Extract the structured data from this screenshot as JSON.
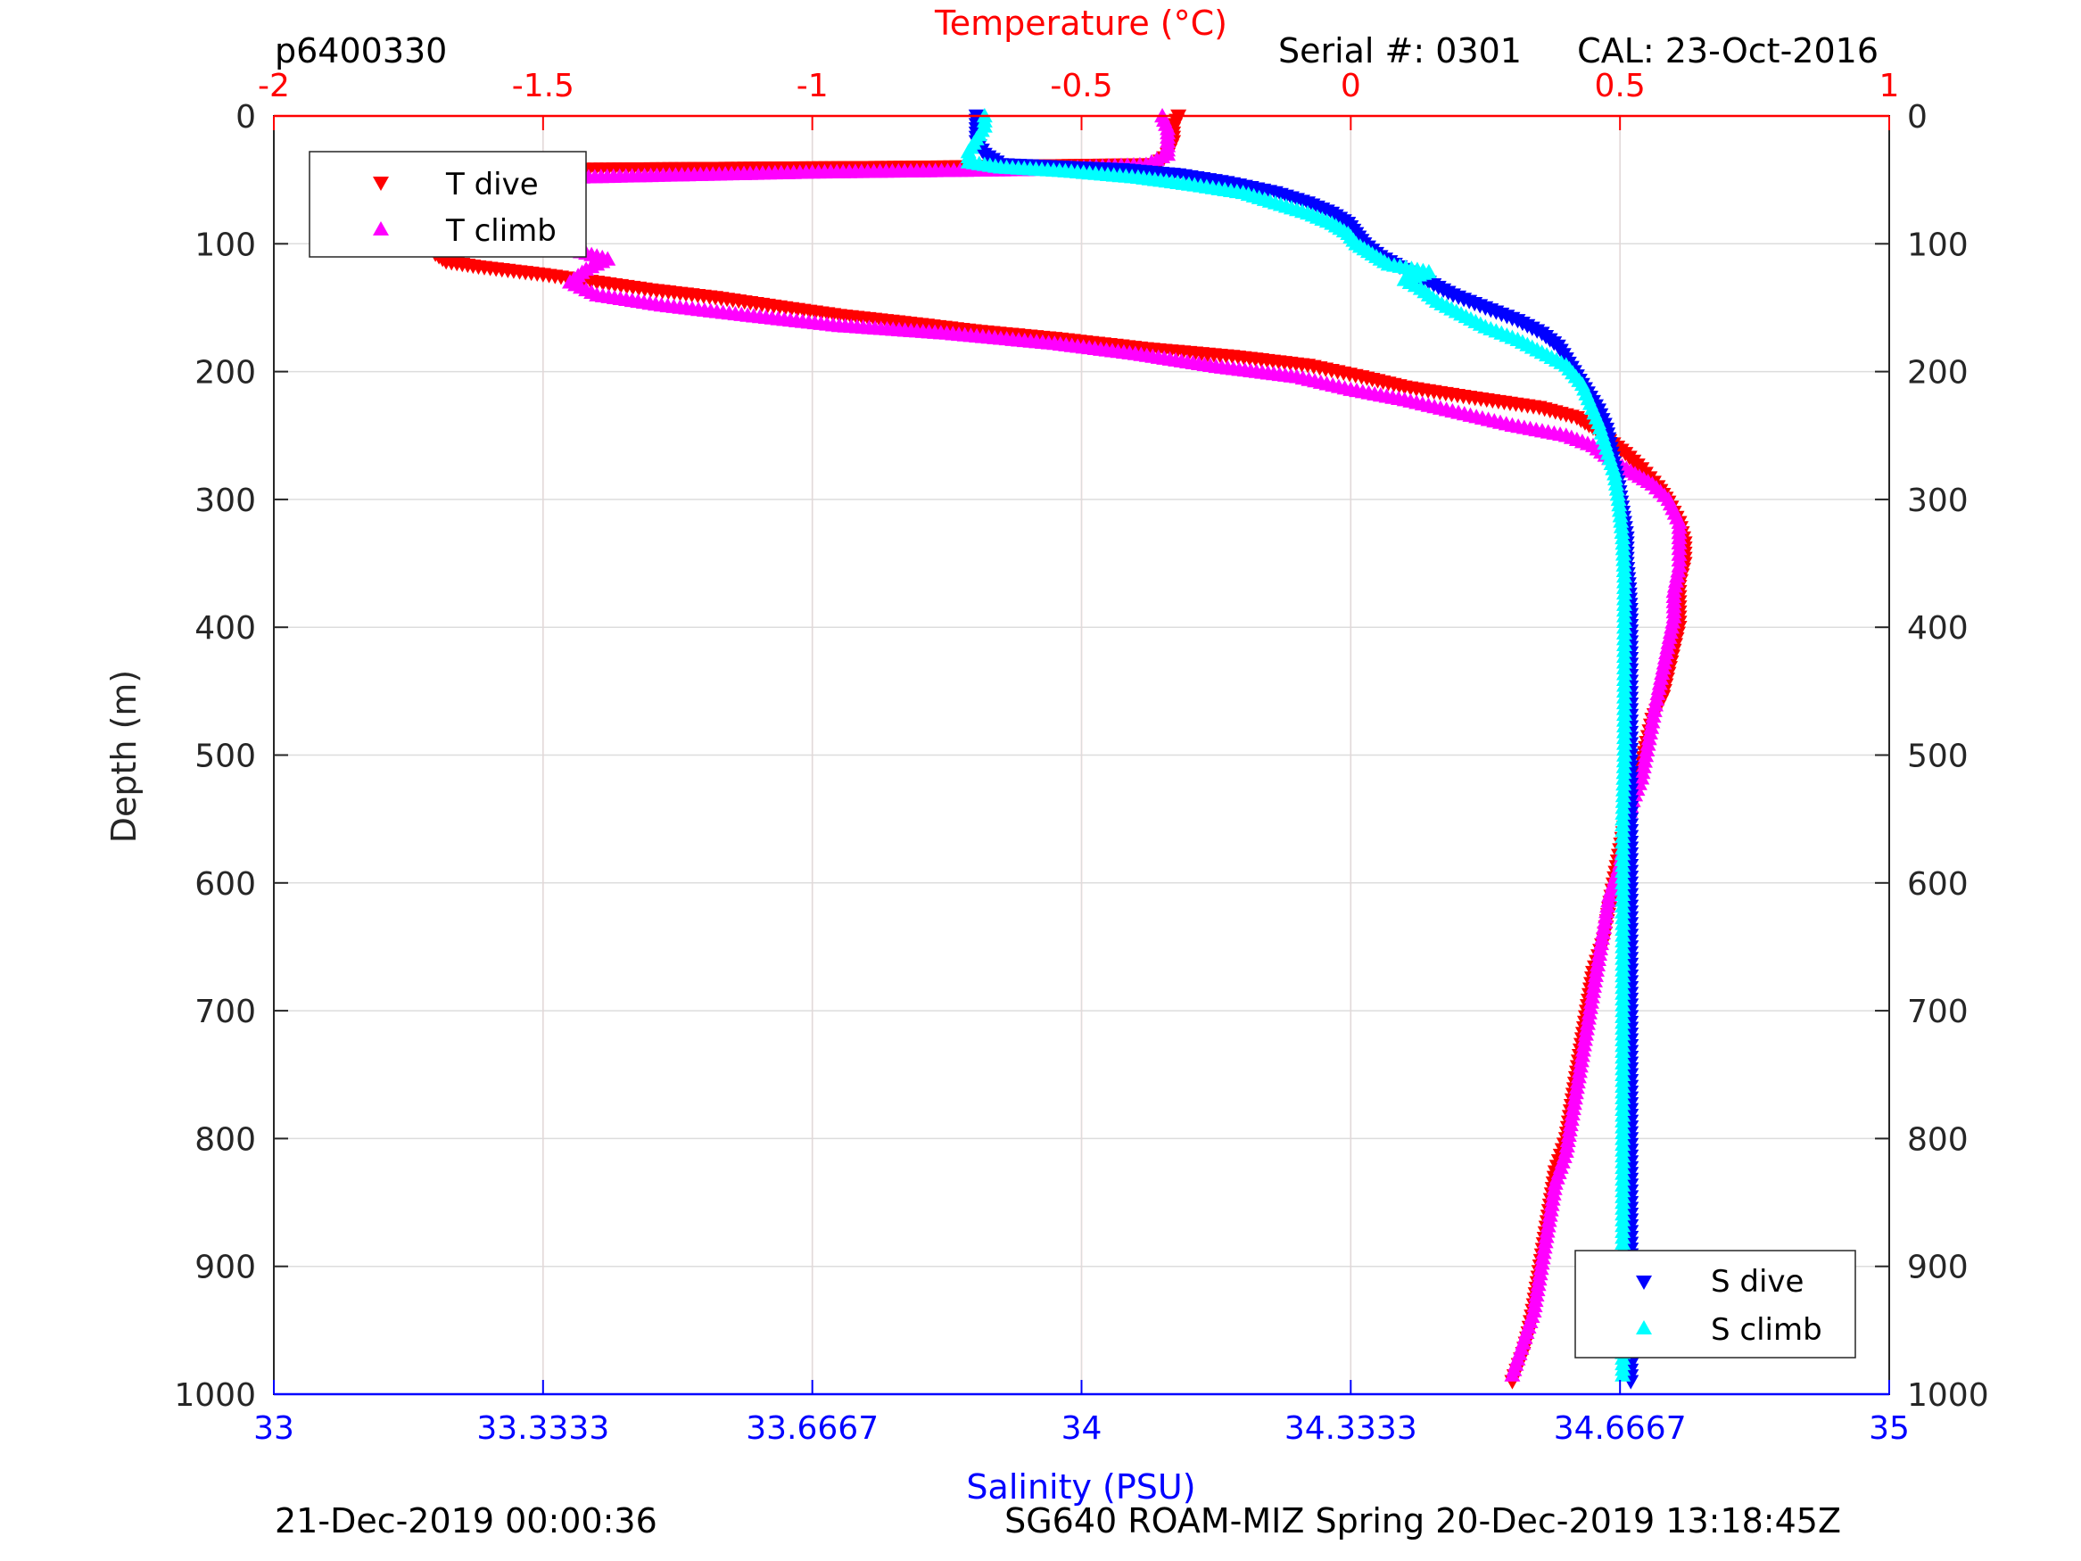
{
  "header": {
    "profile_id": "p6400330",
    "serial": "Serial #: 0301",
    "cal": "CAL: 23-Oct-2016"
  },
  "footer": {
    "left": "21-Dec-2019 00:00:36",
    "right": "SG640 ROAM-MIZ Spring 20-Dec-2019 13:18:45Z"
  },
  "colors": {
    "t_dive": "#ff0000",
    "t_climb": "#ff00ff",
    "s_dive": "#0000ff",
    "s_climb": "#00ffff",
    "temp_axis": "#ff0000",
    "sal_axis": "#0000ff",
    "grid_temp": "#f3c4c4",
    "grid_depth": "#dddddd"
  },
  "chart_data": {
    "type": "scatter",
    "y_axis": {
      "label": "Depth (m)",
      "lim": [
        0,
        1000
      ],
      "reversed": true,
      "ticks": [
        "0",
        "100",
        "200",
        "300",
        "400",
        "500",
        "600",
        "700",
        "800",
        "900",
        "1000"
      ],
      "tick_values": [
        0,
        100,
        200,
        300,
        400,
        500,
        600,
        700,
        800,
        900,
        1000
      ]
    },
    "x_top": {
      "label": "Temperature (°C)",
      "lim": [
        -2,
        1
      ],
      "ticks": [
        "-2",
        "-1.5",
        "-1",
        "-0.5",
        "0",
        "0.5",
        "1"
      ],
      "tick_values": [
        -2,
        -1.5,
        -1,
        -0.5,
        0,
        0.5,
        1
      ]
    },
    "x_bottom": {
      "label": "Salinity (PSU)",
      "lim": [
        33,
        35
      ],
      "ticks": [
        "33",
        "33.3333",
        "33.6667",
        "34",
        "34.3333",
        "34.6667",
        "35"
      ],
      "tick_values": [
        33,
        33.3333,
        33.6667,
        34,
        34.3333,
        34.6667,
        35
      ]
    },
    "grid": true,
    "legends": [
      {
        "placement": "top-left",
        "entries": [
          "T dive",
          "T climb"
        ]
      },
      {
        "placement": "bottom-right",
        "entries": [
          "S dive",
          "S climb"
        ]
      }
    ],
    "series": [
      {
        "name": "T dive",
        "axis": "temperature",
        "marker": "triangle-down",
        "points": [
          [
            -0.32,
            0
          ],
          [
            -0.33,
            10
          ],
          [
            -0.33,
            20
          ],
          [
            -0.34,
            30
          ],
          [
            -0.36,
            38
          ],
          [
            -0.8,
            40
          ],
          [
            -1.6,
            42
          ],
          [
            -1.66,
            48
          ],
          [
            -1.69,
            58
          ],
          [
            -1.71,
            70
          ],
          [
            -1.71,
            82
          ],
          [
            -1.7,
            95
          ],
          [
            -1.7,
            108
          ],
          [
            -1.68,
            114
          ],
          [
            -1.62,
            118
          ],
          [
            -1.5,
            124
          ],
          [
            -1.4,
            130
          ],
          [
            -1.3,
            136
          ],
          [
            -1.18,
            142
          ],
          [
            -1.05,
            150
          ],
          [
            -0.95,
            156
          ],
          [
            -0.82,
            162
          ],
          [
            -0.7,
            168
          ],
          [
            -0.55,
            174
          ],
          [
            -0.38,
            182
          ],
          [
            -0.22,
            188
          ],
          [
            -0.08,
            195
          ],
          [
            0.02,
            204
          ],
          [
            0.1,
            212
          ],
          [
            0.22,
            220
          ],
          [
            0.35,
            228
          ],
          [
            0.42,
            236
          ],
          [
            0.45,
            244
          ],
          [
            0.48,
            254
          ],
          [
            0.51,
            264
          ],
          [
            0.54,
            276
          ],
          [
            0.57,
            290
          ],
          [
            0.59,
            302
          ],
          [
            0.61,
            318
          ],
          [
            0.62,
            334
          ],
          [
            0.62,
            350
          ],
          [
            0.61,
            368
          ],
          [
            0.61,
            384
          ],
          [
            0.61,
            400
          ],
          [
            0.6,
            418
          ],
          [
            0.59,
            436
          ],
          [
            0.58,
            454
          ],
          [
            0.56,
            472
          ],
          [
            0.55,
            490
          ],
          [
            0.54,
            510
          ],
          [
            0.53,
            530
          ],
          [
            0.51,
            552
          ],
          [
            0.5,
            574
          ],
          [
            0.49,
            596
          ],
          [
            0.48,
            620
          ],
          [
            0.47,
            644
          ],
          [
            0.45,
            670
          ],
          [
            0.44,
            696
          ],
          [
            0.43,
            722
          ],
          [
            0.42,
            748
          ],
          [
            0.41,
            774
          ],
          [
            0.4,
            800
          ],
          [
            0.38,
            826
          ],
          [
            0.37,
            852
          ],
          [
            0.36,
            878
          ],
          [
            0.35,
            904
          ],
          [
            0.34,
            930
          ],
          [
            0.33,
            952
          ],
          [
            0.32,
            968
          ],
          [
            0.3,
            990
          ]
        ]
      },
      {
        "name": "T climb",
        "axis": "temperature",
        "marker": "triangle-up",
        "points": [
          [
            0.3,
            985
          ],
          [
            0.32,
            960
          ],
          [
            0.34,
            935
          ],
          [
            0.35,
            910
          ],
          [
            0.36,
            885
          ],
          [
            0.37,
            860
          ],
          [
            0.38,
            835
          ],
          [
            0.4,
            810
          ],
          [
            0.41,
            785
          ],
          [
            0.42,
            760
          ],
          [
            0.43,
            735
          ],
          [
            0.44,
            710
          ],
          [
            0.45,
            685
          ],
          [
            0.46,
            660
          ],
          [
            0.47,
            635
          ],
          [
            0.48,
            610
          ],
          [
            0.5,
            585
          ],
          [
            0.51,
            560
          ],
          [
            0.52,
            540
          ],
          [
            0.54,
            518
          ],
          [
            0.55,
            496
          ],
          [
            0.56,
            474
          ],
          [
            0.57,
            452
          ],
          [
            0.58,
            432
          ],
          [
            0.59,
            412
          ],
          [
            0.6,
            392
          ],
          [
            0.6,
            372
          ],
          [
            0.61,
            352
          ],
          [
            0.61,
            334
          ],
          [
            0.61,
            318
          ],
          [
            0.59,
            300
          ],
          [
            0.56,
            288
          ],
          [
            0.52,
            278
          ],
          [
            0.48,
            268
          ],
          [
            0.45,
            258
          ],
          [
            0.4,
            250
          ],
          [
            0.3,
            242
          ],
          [
            0.2,
            232
          ],
          [
            0.1,
            222
          ],
          [
            0.0,
            214
          ],
          [
            -0.1,
            204
          ],
          [
            -0.25,
            196
          ],
          [
            -0.4,
            186
          ],
          [
            -0.55,
            178
          ],
          [
            -0.75,
            170
          ],
          [
            -0.95,
            164
          ],
          [
            -1.12,
            156
          ],
          [
            -1.28,
            148
          ],
          [
            -1.4,
            140
          ],
          [
            -1.45,
            130
          ],
          [
            -1.42,
            120
          ],
          [
            -1.38,
            112
          ],
          [
            -1.45,
            104
          ],
          [
            -1.58,
            96
          ],
          [
            -1.65,
            90
          ],
          [
            -1.66,
            84
          ],
          [
            -1.62,
            78
          ],
          [
            -1.55,
            74
          ],
          [
            -1.62,
            68
          ],
          [
            -1.66,
            60
          ],
          [
            -1.62,
            54
          ],
          [
            -1.45,
            48
          ],
          [
            -1.0,
            44
          ],
          [
            -0.6,
            42
          ],
          [
            -0.38,
            38
          ],
          [
            -0.34,
            30
          ],
          [
            -0.34,
            20
          ],
          [
            -0.34,
            10
          ],
          [
            -0.35,
            0
          ]
        ]
      },
      {
        "name": "S dive",
        "axis": "salinity",
        "marker": "triangle-down",
        "points": [
          [
            33.87,
            0
          ],
          [
            33.87,
            10
          ],
          [
            33.87,
            20
          ],
          [
            33.88,
            30
          ],
          [
            33.9,
            38
          ],
          [
            34.05,
            42
          ],
          [
            34.12,
            46
          ],
          [
            34.18,
            52
          ],
          [
            34.24,
            60
          ],
          [
            34.28,
            68
          ],
          [
            34.31,
            76
          ],
          [
            34.33,
            84
          ],
          [
            34.34,
            92
          ],
          [
            34.35,
            100
          ],
          [
            34.37,
            110
          ],
          [
            34.4,
            120
          ],
          [
            34.43,
            130
          ],
          [
            34.46,
            140
          ],
          [
            34.5,
            150
          ],
          [
            34.54,
            160
          ],
          [
            34.57,
            170
          ],
          [
            34.59,
            180
          ],
          [
            34.6,
            190
          ],
          [
            34.61,
            200
          ],
          [
            34.62,
            210
          ],
          [
            34.63,
            220
          ],
          [
            34.64,
            230
          ],
          [
            34.65,
            245
          ],
          [
            34.655,
            260
          ],
          [
            34.66,
            275
          ],
          [
            34.665,
            290
          ],
          [
            34.67,
            310
          ],
          [
            34.675,
            330
          ],
          [
            34.675,
            350
          ],
          [
            34.678,
            370
          ],
          [
            34.68,
            390
          ],
          [
            34.68,
            420
          ],
          [
            34.68,
            460
          ],
          [
            34.68,
            500
          ],
          [
            34.68,
            550
          ],
          [
            34.68,
            600
          ],
          [
            34.68,
            650
          ],
          [
            34.68,
            700
          ],
          [
            34.68,
            750
          ],
          [
            34.68,
            800
          ],
          [
            34.68,
            850
          ],
          [
            34.68,
            900
          ],
          [
            34.68,
            950
          ],
          [
            34.68,
            990
          ]
        ]
      },
      {
        "name": "S climb",
        "axis": "salinity",
        "marker": "triangle-up",
        "points": [
          [
            34.67,
            985
          ],
          [
            34.67,
            950
          ],
          [
            34.67,
            900
          ],
          [
            34.67,
            850
          ],
          [
            34.67,
            800
          ],
          [
            34.67,
            750
          ],
          [
            34.67,
            700
          ],
          [
            34.67,
            650
          ],
          [
            34.67,
            600
          ],
          [
            34.67,
            550
          ],
          [
            34.672,
            500
          ],
          [
            34.672,
            450
          ],
          [
            34.672,
            400
          ],
          [
            34.672,
            360
          ],
          [
            34.67,
            330
          ],
          [
            34.665,
            300
          ],
          [
            34.66,
            280
          ],
          [
            34.65,
            260
          ],
          [
            34.64,
            240
          ],
          [
            34.63,
            225
          ],
          [
            34.62,
            210
          ],
          [
            34.6,
            195
          ],
          [
            34.57,
            185
          ],
          [
            34.54,
            175
          ],
          [
            34.5,
            165
          ],
          [
            34.47,
            155
          ],
          [
            34.44,
            145
          ],
          [
            34.42,
            135
          ],
          [
            34.4,
            128
          ],
          [
            34.43,
            122
          ],
          [
            34.38,
            116
          ],
          [
            34.36,
            108
          ],
          [
            34.34,
            100
          ],
          [
            34.33,
            92
          ],
          [
            34.31,
            84
          ],
          [
            34.28,
            76
          ],
          [
            34.24,
            68
          ],
          [
            34.2,
            60
          ],
          [
            34.14,
            54
          ],
          [
            34.07,
            48
          ],
          [
            33.98,
            43
          ],
          [
            33.9,
            40
          ],
          [
            33.86,
            36
          ],
          [
            33.86,
            28
          ],
          [
            33.87,
            18
          ],
          [
            33.88,
            8
          ],
          [
            33.88,
            0
          ]
        ]
      }
    ]
  }
}
